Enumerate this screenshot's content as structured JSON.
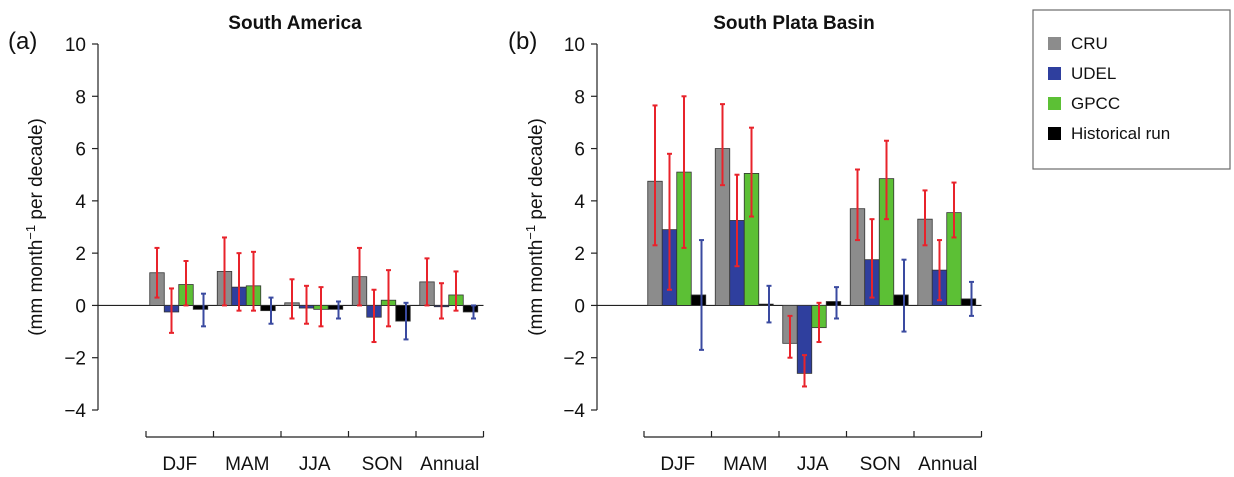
{
  "legend": {
    "items": [
      {
        "label": "CRU",
        "color": "#8c8c8c"
      },
      {
        "label": "UDEL",
        "color": "#2f3f9e"
      },
      {
        "label": "GPCC",
        "color": "#5cc035"
      },
      {
        "label": "Historical run",
        "color": "#000000"
      }
    ]
  },
  "colors": {
    "obs_error": "#e8232b",
    "hist_error": "#3a4aa0"
  },
  "chart_data": [
    {
      "type": "bar",
      "panel_label": "(a)",
      "title": "South America",
      "ylabel_main": "(mm month",
      "ylabel_sup": "−1",
      "ylabel_rest": " per decade)",
      "ylim": [
        -4,
        10
      ],
      "yticks": [
        "−4",
        "−2",
        "0",
        "2",
        "4",
        "6",
        "8",
        "10"
      ],
      "categories": [
        "DJF",
        "MAM",
        "JJA",
        "SON",
        "Annual"
      ],
      "series": [
        {
          "name": "CRU",
          "values": [
            1.25,
            1.3,
            0.1,
            1.1,
            0.9
          ],
          "err_low": [
            0.3,
            0.0,
            -0.5,
            0.0,
            0.0
          ],
          "err_high": [
            2.2,
            2.6,
            1.0,
            2.2,
            1.8
          ]
        },
        {
          "name": "UDEL",
          "values": [
            -0.25,
            0.7,
            -0.1,
            -0.45,
            -0.05
          ],
          "err_low": [
            -1.05,
            -0.2,
            -0.7,
            -1.4,
            -0.5
          ],
          "err_high": [
            0.65,
            2.0,
            0.75,
            0.6,
            0.85
          ]
        },
        {
          "name": "GPCC",
          "values": [
            0.8,
            0.75,
            -0.15,
            0.2,
            0.4
          ],
          "err_low": [
            0.0,
            -0.2,
            -0.8,
            -0.8,
            -0.2
          ],
          "err_high": [
            1.7,
            2.05,
            0.7,
            1.35,
            1.3
          ]
        },
        {
          "name": "Historical run",
          "values": [
            -0.15,
            -0.2,
            -0.15,
            -0.6,
            -0.25
          ],
          "err_low": [
            -0.8,
            -0.7,
            -0.5,
            -1.3,
            -0.5
          ],
          "err_high": [
            0.45,
            0.3,
            0.15,
            0.1,
            0.0
          ]
        }
      ]
    },
    {
      "type": "bar",
      "panel_label": "(b)",
      "title": "South Plata Basin",
      "ylabel_main": "(mm month",
      "ylabel_sup": "−1",
      "ylabel_rest": " per decade)",
      "ylim": [
        -4,
        10
      ],
      "yticks": [
        "−4",
        "−2",
        "0",
        "2",
        "4",
        "6",
        "8",
        "10"
      ],
      "categories": [
        "DJF",
        "MAM",
        "JJA",
        "SON",
        "Annual"
      ],
      "series": [
        {
          "name": "CRU",
          "values": [
            4.75,
            6.0,
            -1.45,
            3.7,
            3.3
          ],
          "err_low": [
            2.3,
            4.6,
            -2.0,
            2.5,
            2.3
          ],
          "err_high": [
            7.65,
            7.7,
            -0.4,
            5.2,
            4.4
          ]
        },
        {
          "name": "UDEL",
          "values": [
            2.9,
            3.25,
            -2.6,
            1.75,
            1.35
          ],
          "err_low": [
            0.6,
            1.5,
            -3.1,
            0.3,
            0.2
          ],
          "err_high": [
            5.8,
            5.0,
            -1.9,
            3.3,
            2.5
          ]
        },
        {
          "name": "GPCC",
          "values": [
            5.1,
            5.05,
            -0.85,
            4.85,
            3.55
          ],
          "err_low": [
            2.2,
            3.4,
            -1.4,
            3.3,
            2.6
          ],
          "err_high": [
            8.0,
            6.8,
            0.1,
            6.3,
            4.7
          ]
        },
        {
          "name": "Historical run",
          "values": [
            0.4,
            0.05,
            0.15,
            0.4,
            0.25
          ],
          "err_low": [
            -1.7,
            -0.65,
            -0.5,
            -1.0,
            -0.4
          ],
          "err_high": [
            2.5,
            0.75,
            0.7,
            1.75,
            0.9
          ]
        }
      ]
    }
  ]
}
